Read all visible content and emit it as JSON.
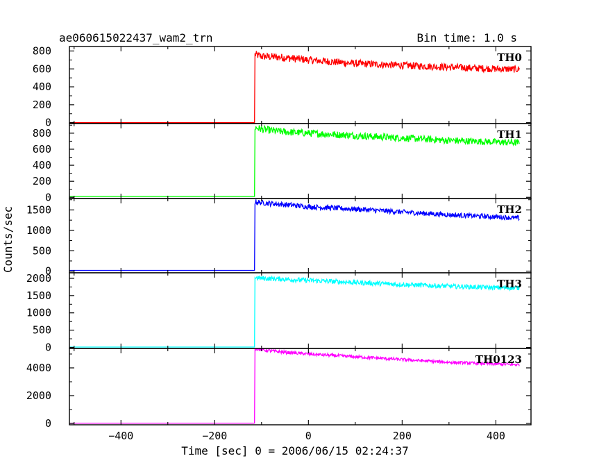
{
  "header": {
    "title": "ae060615022437_wam2_trn",
    "bin_time": "Bin time: 1.0 s"
  },
  "chart_data": {
    "type": "line",
    "xlabel": "Time [sec] 0 = 2006/06/15 02:24:37",
    "ylabel": "Counts/sec",
    "xlim": [
      -510,
      475
    ],
    "xticks": [
      -400,
      -200,
      0,
      200,
      400
    ],
    "panels": [
      {
        "name": "TH0",
        "color": "#ff0000",
        "ylim": [
          -10,
          850
        ],
        "yticks": [
          0,
          200,
          400,
          600,
          800
        ],
        "x": [
          -510,
          -115,
          -114,
          -100,
          -60,
          0,
          100,
          200,
          300,
          400,
          450
        ],
        "y": [
          0,
          0,
          760,
          740,
          730,
          700,
          660,
          640,
          620,
          600,
          595
        ]
      },
      {
        "name": "TH1",
        "color": "#00ff00",
        "ylim": [
          -15,
          920
        ],
        "yticks": [
          0,
          200,
          400,
          600,
          800
        ],
        "x": [
          -510,
          -115,
          -114,
          -100,
          -60,
          0,
          100,
          200,
          300,
          400,
          450
        ],
        "y": [
          10,
          10,
          870,
          850,
          820,
          800,
          770,
          740,
          710,
          690,
          680
        ]
      },
      {
        "name": "TH2",
        "color": "#0000ff",
        "ylim": [
          -40,
          1780
        ],
        "yticks": [
          0,
          500,
          1000,
          1500
        ],
        "x": [
          -510,
          -115,
          -114,
          -100,
          -60,
          0,
          100,
          200,
          300,
          400,
          450
        ],
        "y": [
          20,
          20,
          1700,
          1680,
          1640,
          1580,
          1520,
          1450,
          1380,
          1330,
          1300
        ]
      },
      {
        "name": "TH3",
        "color": "#00ffff",
        "ylim": [
          -30,
          2160
        ],
        "yticks": [
          0,
          500,
          1000,
          1500,
          2000
        ],
        "x": [
          -510,
          -115,
          -114,
          -100,
          -60,
          0,
          100,
          200,
          300,
          400,
          450
        ],
        "y": [
          10,
          10,
          2020,
          2000,
          1980,
          1940,
          1880,
          1820,
          1770,
          1730,
          1720
        ]
      },
      {
        "name": "TH0123",
        "color": "#ff00ff",
        "ylim": [
          -100,
          5400
        ],
        "yticks": [
          0,
          2000,
          4000
        ],
        "x": [
          -510,
          -115,
          -114,
          -100,
          -60,
          0,
          100,
          200,
          300,
          400,
          450
        ],
        "y": [
          20,
          20,
          5400,
          5300,
          5150,
          5000,
          4800,
          4600,
          4400,
          4280,
          4230
        ]
      }
    ]
  }
}
